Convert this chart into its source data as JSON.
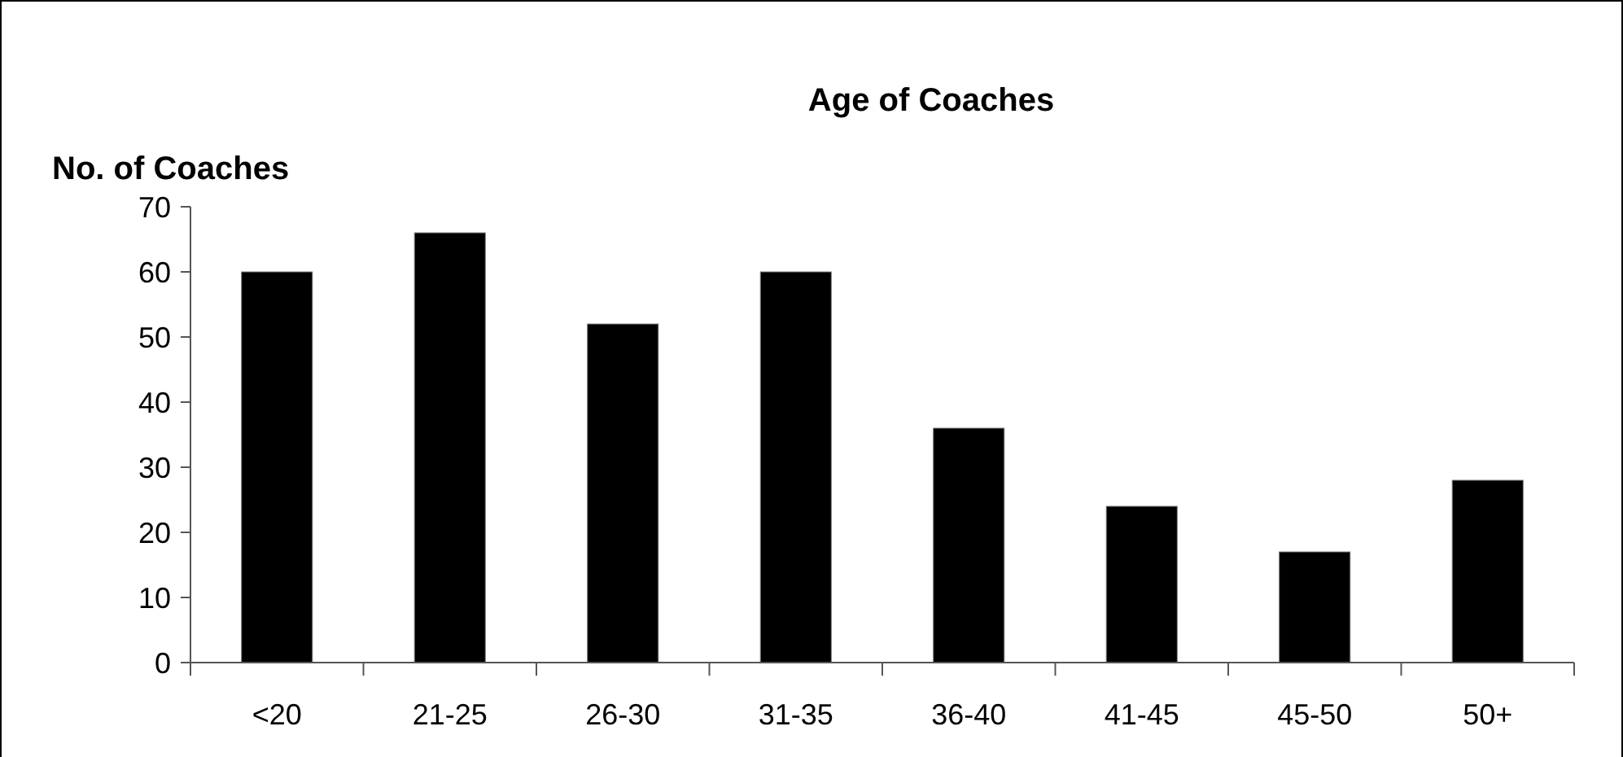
{
  "chart_data": {
    "type": "bar",
    "title": "Age of Coaches",
    "ylabel": "No. of Coaches",
    "categories": [
      "<20",
      "21-25",
      "26-30",
      "31-35",
      "36-40",
      "41-45",
      "45-50",
      "50+"
    ],
    "values": [
      60,
      66,
      52,
      60,
      36,
      24,
      17,
      28
    ],
    "color": "#000000",
    "ylim": [
      0,
      70
    ],
    "yticks": [
      0,
      10,
      20,
      30,
      40,
      50,
      60,
      70
    ],
    "grid": false
  }
}
